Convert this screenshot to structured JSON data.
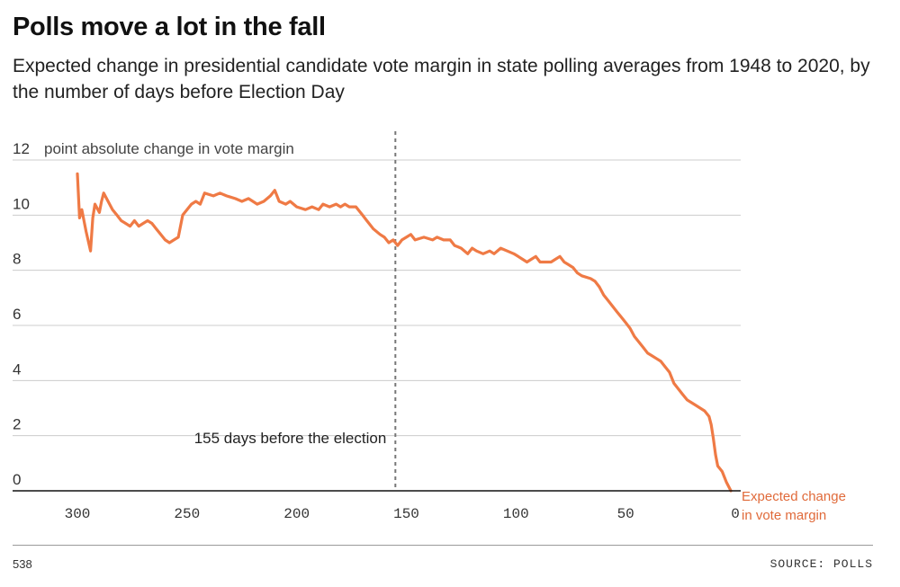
{
  "header": {
    "title": "Polls move a lot in the fall",
    "subtitle": "Expected change in presidential candidate vote margin in state polling averages from 1948 to 2020, by the number of days before Election Day"
  },
  "footer": {
    "source_left": "538",
    "source_right": "SOURCE: POLLS"
  },
  "colors": {
    "line": "#ef7a45",
    "end_label": "#e06a3a",
    "grid": "#cccccc",
    "reference": "#777777"
  },
  "chart_data": {
    "type": "line",
    "title": "Polls move a lot in the fall",
    "ylabel": "point absolute change in vote margin",
    "xlabel": "",
    "xlim": [
      300,
      0
    ],
    "ylim": [
      0,
      12
    ],
    "x_ticks": [
      300,
      250,
      200,
      150,
      100,
      50,
      0
    ],
    "y_ticks": [
      0,
      2,
      4,
      6,
      8,
      10,
      12
    ],
    "grid": true,
    "reference_line": {
      "x": 155,
      "label": "155 days before the election"
    },
    "end_label": "Expected change in vote margin",
    "series": [
      {
        "points": [
          [
            300,
            11.5
          ],
          [
            299,
            9.9
          ],
          [
            298,
            10.2
          ],
          [
            297,
            9.8
          ],
          [
            296,
            9.4
          ],
          [
            294,
            8.7
          ],
          [
            293,
            9.9
          ],
          [
            292,
            10.4
          ],
          [
            290,
            10.1
          ],
          [
            289,
            10.5
          ],
          [
            288,
            10.8
          ],
          [
            286,
            10.5
          ],
          [
            284,
            10.2
          ],
          [
            282,
            10.0
          ],
          [
            280,
            9.8
          ],
          [
            278,
            9.7
          ],
          [
            276,
            9.6
          ],
          [
            274,
            9.8
          ],
          [
            272,
            9.6
          ],
          [
            270,
            9.7
          ],
          [
            268,
            9.8
          ],
          [
            266,
            9.7
          ],
          [
            264,
            9.5
          ],
          [
            262,
            9.3
          ],
          [
            260,
            9.1
          ],
          [
            258,
            9.0
          ],
          [
            256,
            9.1
          ],
          [
            254,
            9.2
          ],
          [
            252,
            10.0
          ],
          [
            250,
            10.2
          ],
          [
            248,
            10.4
          ],
          [
            246,
            10.5
          ],
          [
            244,
            10.4
          ],
          [
            242,
            10.8
          ],
          [
            238,
            10.7
          ],
          [
            235,
            10.8
          ],
          [
            232,
            10.7
          ],
          [
            228,
            10.6
          ],
          [
            225,
            10.5
          ],
          [
            222,
            10.6
          ],
          [
            218,
            10.4
          ],
          [
            215,
            10.5
          ],
          [
            212,
            10.7
          ],
          [
            210,
            10.9
          ],
          [
            208,
            10.5
          ],
          [
            205,
            10.4
          ],
          [
            203,
            10.5
          ],
          [
            200,
            10.3
          ],
          [
            196,
            10.2
          ],
          [
            193,
            10.3
          ],
          [
            190,
            10.2
          ],
          [
            188,
            10.4
          ],
          [
            185,
            10.3
          ],
          [
            182,
            10.4
          ],
          [
            180,
            10.3
          ],
          [
            178,
            10.4
          ],
          [
            176,
            10.3
          ],
          [
            173,
            10.3
          ],
          [
            170,
            10.0
          ],
          [
            168,
            9.8
          ],
          [
            165,
            9.5
          ],
          [
            162,
            9.3
          ],
          [
            160,
            9.2
          ],
          [
            158,
            9.0
          ],
          [
            156,
            9.1
          ],
          [
            154,
            8.9
          ],
          [
            152,
            9.1
          ],
          [
            150,
            9.2
          ],
          [
            148,
            9.3
          ],
          [
            146,
            9.1
          ],
          [
            142,
            9.2
          ],
          [
            138,
            9.1
          ],
          [
            136,
            9.2
          ],
          [
            133,
            9.1
          ],
          [
            130,
            9.1
          ],
          [
            128,
            8.9
          ],
          [
            125,
            8.8
          ],
          [
            122,
            8.6
          ],
          [
            120,
            8.8
          ],
          [
            118,
            8.7
          ],
          [
            115,
            8.6
          ],
          [
            112,
            8.7
          ],
          [
            110,
            8.6
          ],
          [
            107,
            8.8
          ],
          [
            104,
            8.7
          ],
          [
            101,
            8.6
          ],
          [
            99,
            8.5
          ],
          [
            97,
            8.4
          ],
          [
            95,
            8.3
          ],
          [
            93,
            8.4
          ],
          [
            91,
            8.5
          ],
          [
            89,
            8.3
          ],
          [
            86,
            8.3
          ],
          [
            84,
            8.3
          ],
          [
            82,
            8.4
          ],
          [
            80,
            8.5
          ],
          [
            78,
            8.3
          ],
          [
            76,
            8.2
          ],
          [
            74,
            8.1
          ],
          [
            72,
            7.9
          ],
          [
            70,
            7.8
          ],
          [
            66,
            7.7
          ],
          [
            64,
            7.6
          ],
          [
            62,
            7.4
          ],
          [
            60,
            7.1
          ],
          [
            58,
            6.9
          ],
          [
            56,
            6.7
          ],
          [
            54,
            6.5
          ],
          [
            52,
            6.3
          ],
          [
            50,
            6.1
          ],
          [
            48,
            5.9
          ],
          [
            46,
            5.6
          ],
          [
            44,
            5.4
          ],
          [
            42,
            5.2
          ],
          [
            40,
            5.0
          ],
          [
            38,
            4.9
          ],
          [
            36,
            4.8
          ],
          [
            34,
            4.7
          ],
          [
            32,
            4.5
          ],
          [
            30,
            4.3
          ],
          [
            28,
            3.9
          ],
          [
            26,
            3.7
          ],
          [
            24,
            3.5
          ],
          [
            22,
            3.3
          ],
          [
            20,
            3.2
          ],
          [
            18,
            3.1
          ],
          [
            16,
            3.0
          ],
          [
            14,
            2.9
          ],
          [
            12,
            2.7
          ],
          [
            11,
            2.4
          ],
          [
            10,
            1.9
          ],
          [
            9,
            1.3
          ],
          [
            8,
            0.9
          ],
          [
            6,
            0.7
          ],
          [
            4,
            0.3
          ],
          [
            2,
            0.0
          ]
        ]
      }
    ]
  }
}
